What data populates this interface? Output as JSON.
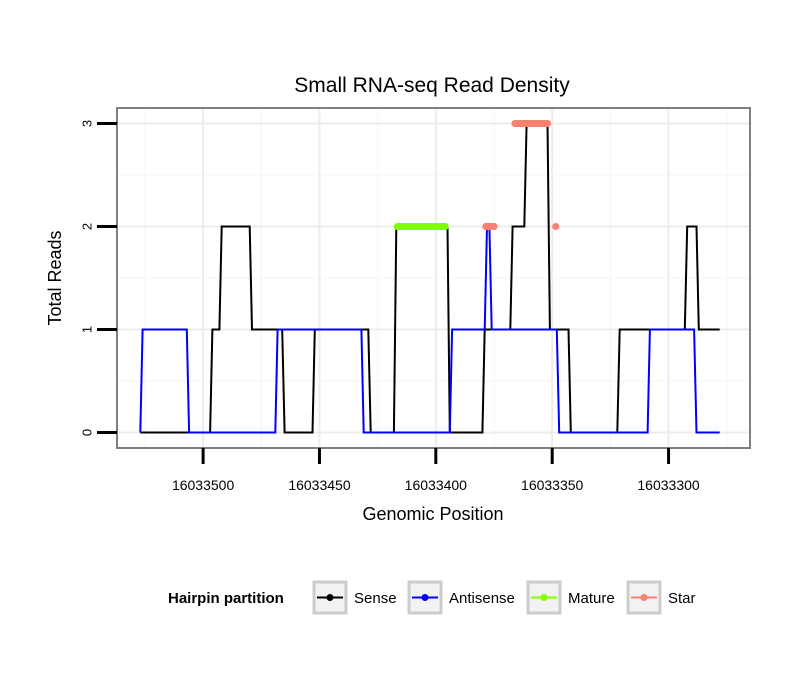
{
  "chart_data": {
    "type": "line",
    "title": "Small RNA-seq Read Density",
    "xlabel": "Genomic Position",
    "ylabel": "Total Reads",
    "x_reversed": true,
    "xlim": [
      16033537,
      16033265
    ],
    "ylim": [
      -0.15,
      3.15
    ],
    "x_ticks": [
      16033500,
      16033450,
      16033400,
      16033350,
      16033300
    ],
    "x_tick_labels": [
      "16033500",
      "16033450",
      "16033400",
      "16033350",
      "16033300"
    ],
    "y_ticks": [
      0,
      1,
      2,
      3
    ],
    "y_tick_labels": [
      "0",
      "1",
      "2",
      "3"
    ],
    "grid": true,
    "legend_position": "bottom",
    "legend_title": "Hairpin partition",
    "series": [
      {
        "name": "Sense",
        "color": "#000000",
        "kind": "line",
        "x": [
          16033527,
          16033505,
          16033497,
          16033496,
          16033493,
          16033492,
          16033480,
          16033479,
          16033466,
          16033465,
          16033453,
          16033452,
          16033429,
          16033428,
          16033423,
          16033422,
          16033418,
          16033417,
          16033395,
          16033394,
          16033380,
          16033379,
          16033368,
          16033367,
          16033362,
          16033361,
          16033352,
          16033351,
          16033343,
          16033342,
          16033322,
          16033321,
          16033309,
          16033308,
          16033293,
          16033292,
          16033288,
          16033287,
          16033278
        ],
        "y": [
          0,
          0,
          0,
          1,
          1,
          2,
          2,
          1,
          1,
          0,
          0,
          1,
          1,
          0,
          0,
          0,
          0,
          2,
          2,
          0,
          0,
          1,
          1,
          2,
          2,
          3,
          3,
          1,
          1,
          0,
          0,
          1,
          1,
          1,
          1,
          2,
          2,
          1,
          1
        ]
      },
      {
        "name": "Antisense",
        "color": "#0000ff",
        "kind": "line",
        "x": [
          16033527,
          16033526,
          16033507,
          16033506,
          16033469,
          16033468,
          16033432,
          16033431,
          16033394,
          16033393,
          16033379,
          16033378,
          16033377,
          16033376,
          16033366,
          16033365,
          16033348,
          16033347,
          16033309,
          16033308,
          16033289,
          16033288,
          16033278
        ],
        "y": [
          0,
          1,
          1,
          0,
          0,
          1,
          1,
          0,
          0,
          1,
          1,
          2,
          2,
          1,
          1,
          1,
          1,
          0,
          0,
          1,
          1,
          0,
          0
        ]
      },
      {
        "name": "Mature",
        "color": "#7fff00",
        "kind": "points",
        "x": [
          16033416.5,
          16033396
        ],
        "y": [
          2,
          2
        ]
      },
      {
        "name": "Star",
        "color": "#fa8072",
        "kind": "points",
        "x": [
          16033378.5,
          16033375,
          16033366,
          16033352,
          16033359,
          16033348.5
        ],
        "y": [
          2,
          2,
          3,
          3,
          3,
          2
        ]
      }
    ]
  }
}
